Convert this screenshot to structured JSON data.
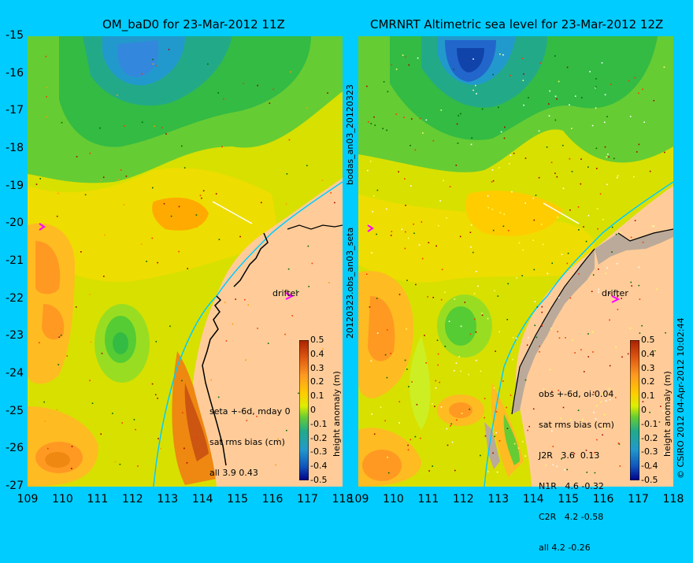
{
  "chart_data": [
    {
      "type": "heatmap",
      "title": "OM_baD0 for 23-Mar-2012 11Z",
      "xlim": [
        109,
        118
      ],
      "ylim": [
        -27,
        -15
      ],
      "x_ticks": [
        "109",
        "110",
        "111",
        "112",
        "113",
        "114",
        "115",
        "116",
        "117",
        "118"
      ],
      "y_ticks": [
        "-15",
        "-16",
        "-17",
        "-18",
        "-19",
        "-20",
        "-21",
        "-22",
        "-23",
        "-24",
        "-25",
        "-26",
        "-27"
      ],
      "colorbar": {
        "label": "height anomaly (m)",
        "range": [
          -0.5,
          0.5
        ],
        "ticks": [
          "0.5",
          "0.4",
          "0.3",
          "0.2",
          "0.1",
          "0",
          "-0.1",
          "-0.2",
          "-0.3",
          "-0.4",
          "-0.5"
        ]
      },
      "annotation_lines": [
        "seta +-6d, mday 0",
        "sat rms bias (cm)",
        "all 3.9 0.43"
      ],
      "drifter_label": "drifter",
      "side_label": "bodas_an03_20120323"
    },
    {
      "type": "heatmap",
      "title": "CMRNRT Altimetric sea level  for 23-Mar-2012 12Z",
      "xlim": [
        109,
        118
      ],
      "ylim": [
        -27,
        -15
      ],
      "x_ticks": [
        "109",
        "110",
        "111",
        "112",
        "113",
        "114",
        "115",
        "116",
        "117",
        "118"
      ],
      "colorbar": {
        "label": "height anomaly (m)",
        "range": [
          -0.5,
          0.5
        ],
        "ticks": [
          "0.5",
          "0.4",
          "0.3",
          "0.2",
          "0.1",
          "0",
          "-0.1",
          "-0.2",
          "-0.3",
          "-0.4",
          "-0.5"
        ]
      },
      "annotation_lines": [
        "obs +-6d, oi-0.04",
        "sat rms bias (cm)",
        "J2R   3.6  0.13",
        "N1R   4.6 -0.32",
        "C2R   4.2 -0.58",
        "all 4.2 -0.26"
      ],
      "drifter_label": "drifter",
      "side_label": "20120323.obs_an03_seta",
      "credit": "© CSIRO 2012   04-Apr-2012 10:02:44"
    }
  ],
  "colors": {
    "background": "#00ccff",
    "land": "#ffcc99",
    "coast": "#00ccff"
  }
}
